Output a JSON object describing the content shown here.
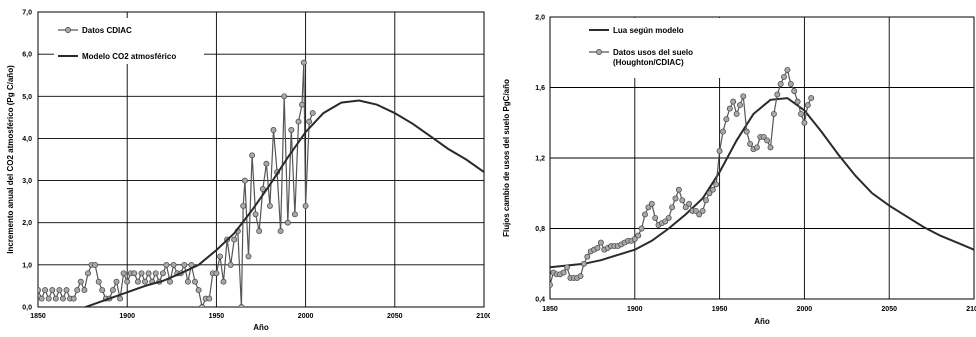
{
  "chart_data": [
    {
      "type": "line",
      "title": "",
      "xlabel": "Año",
      "ylabel": "Incremento anual del CO2 atmosférico  (Pg C/año)",
      "xlim": [
        1850,
        2100
      ],
      "ylim": [
        0,
        7
      ],
      "x_ticks": [
        "1850",
        "1900",
        "1950",
        "2000",
        "2050",
        "2100"
      ],
      "y_ticks": [
        "0,0",
        "1,0",
        "2,0",
        "3,0",
        "4,0",
        "5,0",
        "6,0",
        "7,0"
      ],
      "grid": true,
      "legend_position": "top-left",
      "series": [
        {
          "name": "Datos CDIAC",
          "marker": "circle",
          "x": [
            1850,
            1852,
            1854,
            1856,
            1858,
            1860,
            1862,
            1864,
            1866,
            1868,
            1870,
            1872,
            1874,
            1876,
            1878,
            1880,
            1882,
            1884,
            1886,
            1888,
            1890,
            1892,
            1894,
            1896,
            1898,
            1900,
            1902,
            1904,
            1906,
            1908,
            1910,
            1912,
            1914,
            1916,
            1918,
            1920,
            1922,
            1924,
            1926,
            1928,
            1930,
            1932,
            1934,
            1936,
            1938,
            1940,
            1942,
            1944,
            1946,
            1948,
            1950,
            1952,
            1954,
            1956,
            1958,
            1960,
            1962,
            1964,
            1965,
            1966,
            1968,
            1970,
            1972,
            1974,
            1976,
            1978,
            1980,
            1982,
            1984,
            1986,
            1988,
            1990,
            1992,
            1994,
            1996,
            1998,
            1999,
            2000,
            2002,
            2004
          ],
          "y": [
            0.4,
            0.2,
            0.4,
            0.2,
            0.4,
            0.2,
            0.4,
            0.2,
            0.4,
            0.2,
            0.2,
            0.4,
            0.6,
            0.4,
            0.8,
            1.0,
            1.0,
            0.6,
            0.4,
            0.2,
            0.2,
            0.4,
            0.6,
            0.2,
            0.8,
            0.6,
            0.8,
            0.8,
            0.6,
            0.8,
            0.6,
            0.8,
            0.6,
            0.8,
            0.6,
            0.8,
            1.0,
            0.6,
            1.0,
            0.8,
            0.8,
            1.0,
            0.6,
            1.0,
            0.6,
            0.4,
            0.0,
            0.2,
            0.2,
            0.8,
            0.8,
            1.2,
            0.6,
            1.6,
            1.0,
            1.6,
            1.8,
            0.0,
            2.4,
            3.0,
            1.2,
            3.6,
            2.2,
            1.8,
            2.8,
            3.4,
            2.4,
            4.2,
            3.2,
            1.8,
            5.0,
            2.0,
            4.2,
            2.2,
            4.4,
            4.8,
            5.8,
            2.4,
            4.4,
            4.6
          ]
        },
        {
          "name": "Modelo CO2 atmosférico",
          "x": [
            1870,
            1880,
            1890,
            1900,
            1910,
            1920,
            1930,
            1940,
            1950,
            1960,
            1970,
            1980,
            1990,
            2000,
            2010,
            2020,
            2030,
            2040,
            2050,
            2060,
            2070,
            2080,
            2090,
            2100
          ],
          "y": [
            -0.1,
            0.05,
            0.2,
            0.35,
            0.5,
            0.62,
            0.8,
            1.0,
            1.35,
            1.75,
            2.3,
            2.9,
            3.55,
            4.15,
            4.6,
            4.85,
            4.9,
            4.8,
            4.6,
            4.35,
            4.05,
            3.75,
            3.5,
            3.2
          ]
        }
      ]
    },
    {
      "type": "line",
      "title": "",
      "xlabel": "Año",
      "ylabel": "Flujos cambio de usos del suelo PgC/año",
      "xlim": [
        1850,
        2100
      ],
      "ylim": [
        0.4,
        2.0
      ],
      "x_ticks": [
        "1850",
        "1900",
        "1950",
        "2000",
        "2050",
        "2100"
      ],
      "y_ticks": [
        "0,4",
        "0,8",
        "1,2",
        "1,6",
        "2,0"
      ],
      "grid": true,
      "legend_position": "top-left",
      "series": [
        {
          "name": "Lua según modelo",
          "x": [
            1850,
            1860,
            1870,
            1880,
            1890,
            1900,
            1910,
            1920,
            1930,
            1940,
            1950,
            1960,
            1970,
            1980,
            1990,
            2000,
            2010,
            2020,
            2030,
            2040,
            2050,
            2060,
            2070,
            2080,
            2090,
            2100
          ],
          "y": [
            0.58,
            0.59,
            0.6,
            0.62,
            0.65,
            0.68,
            0.73,
            0.8,
            0.88,
            0.97,
            1.12,
            1.3,
            1.45,
            1.53,
            1.54,
            1.47,
            1.35,
            1.22,
            1.1,
            1.0,
            0.93,
            0.87,
            0.81,
            0.76,
            0.72,
            0.68
          ]
        },
        {
          "name": "Datos usos del suelo (Houghton/CDIAC)",
          "marker": "circle",
          "x": [
            1850,
            1852,
            1854,
            1856,
            1858,
            1860,
            1862,
            1864,
            1866,
            1868,
            1870,
            1872,
            1874,
            1876,
            1878,
            1880,
            1882,
            1884,
            1886,
            1888,
            1890,
            1892,
            1894,
            1896,
            1898,
            1900,
            1902,
            1904,
            1906,
            1908,
            1910,
            1912,
            1914,
            1916,
            1918,
            1920,
            1922,
            1924,
            1926,
            1928,
            1930,
            1932,
            1934,
            1936,
            1938,
            1940,
            1942,
            1944,
            1946,
            1948,
            1950,
            1952,
            1954,
            1956,
            1958,
            1960,
            1962,
            1964,
            1966,
            1968,
            1970,
            1972,
            1974,
            1976,
            1978,
            1980,
            1982,
            1984,
            1986,
            1988,
            1990,
            1992,
            1994,
            1996,
            1998,
            2000,
            2002,
            2004
          ],
          "y": [
            0.48,
            0.55,
            0.54,
            0.54,
            0.55,
            0.58,
            0.52,
            0.52,
            0.52,
            0.53,
            0.6,
            0.64,
            0.67,
            0.68,
            0.69,
            0.72,
            0.68,
            0.69,
            0.7,
            0.7,
            0.7,
            0.71,
            0.72,
            0.73,
            0.73,
            0.74,
            0.76,
            0.8,
            0.88,
            0.92,
            0.94,
            0.86,
            0.82,
            0.83,
            0.84,
            0.86,
            0.92,
            0.97,
            1.02,
            0.96,
            0.92,
            0.94,
            0.9,
            0.9,
            0.88,
            0.9,
            0.96,
            1.0,
            1.02,
            1.05,
            1.24,
            1.35,
            1.42,
            1.48,
            1.52,
            1.45,
            1.5,
            1.55,
            1.35,
            1.28,
            1.25,
            1.26,
            1.32,
            1.32,
            1.3,
            1.26,
            1.45,
            1.56,
            1.62,
            1.66,
            1.7,
            1.62,
            1.58,
            1.52,
            1.45,
            1.4,
            1.5,
            1.54
          ]
        }
      ]
    }
  ]
}
